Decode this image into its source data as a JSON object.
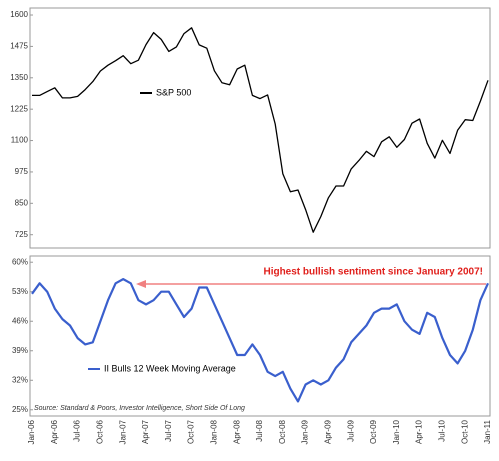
{
  "chart_data": [
    {
      "type": "line",
      "series": [
        {
          "name": "S&P 500",
          "color": "#000000",
          "values": [
            1280,
            1280,
            1295,
            1310,
            1270,
            1270,
            1276,
            1303,
            1335,
            1377,
            1400,
            1418,
            1438,
            1406,
            1420,
            1482,
            1530,
            1503,
            1455,
            1473,
            1526,
            1549,
            1481,
            1468,
            1378,
            1330,
            1322,
            1385,
            1400,
            1280,
            1267,
            1282,
            1166,
            968,
            896,
            903,
            825,
            735,
            797,
            872,
            919,
            919,
            987,
            1020,
            1057,
            1036,
            1095,
            1115,
            1073,
            1104,
            1169,
            1186,
            1089,
            1030,
            1101,
            1049,
            1141,
            1183,
            1180,
            1257,
            1340
          ]
        }
      ],
      "ylim": [
        680,
        1620
      ],
      "yticks": [
        1600,
        1475,
        1350,
        1225,
        1100,
        975,
        850,
        725
      ]
    },
    {
      "type": "line",
      "categories": [
        "Jan-06",
        null,
        null,
        "Apr-06",
        null,
        null,
        "Jul-06",
        null,
        null,
        "Oct-06",
        null,
        null,
        "Jan-07",
        null,
        null,
        "Apr-07",
        null,
        null,
        "Jul-07",
        null,
        null,
        "Oct-07",
        null,
        null,
        "Jan-08",
        null,
        null,
        "Apr-08",
        null,
        null,
        "Jul-08",
        null,
        null,
        "Oct-08",
        null,
        null,
        "Jan-09",
        null,
        null,
        "Apr-09",
        null,
        null,
        "Jul-09",
        null,
        null,
        "Oct-09",
        null,
        null,
        "Jan-10",
        null,
        null,
        "Apr-10",
        null,
        null,
        "Jul-10",
        null,
        null,
        "Oct-10",
        null,
        null,
        "Jan-11"
      ],
      "series": [
        {
          "name": "II Bulls 12 Week Moving Average",
          "color": "#3a5fcd",
          "values": [
            52.5,
            55,
            53,
            49,
            46.5,
            45,
            42,
            40.5,
            41,
            46,
            51,
            55,
            56,
            55,
            51,
            50,
            51,
            53,
            53,
            50,
            47,
            49,
            54,
            54,
            50,
            46,
            42,
            38,
            38,
            40.5,
            38,
            34,
            33,
            34,
            30,
            27,
            31,
            32,
            31,
            32,
            35,
            37,
            41,
            43,
            45,
            48,
            49,
            49,
            50,
            46,
            44,
            43,
            48,
            47,
            42,
            38,
            36,
            39,
            44,
            51,
            55
          ]
        }
      ],
      "ylim": [
        24,
        61
      ],
      "yticks": [
        {
          "value": 60,
          "label": "60%"
        },
        {
          "value": 53,
          "label": "53%"
        },
        {
          "value": 46,
          "label": "46%"
        },
        {
          "value": 39,
          "label": "39%"
        },
        {
          "value": 32,
          "label": "32%"
        },
        {
          "value": 25,
          "label": "25%"
        }
      ],
      "annotation": "Highest bullish sentiment since January 2007!",
      "source": "Source: Standard & Poors, Investor Intelligence, Short Side Of Long"
    }
  ]
}
